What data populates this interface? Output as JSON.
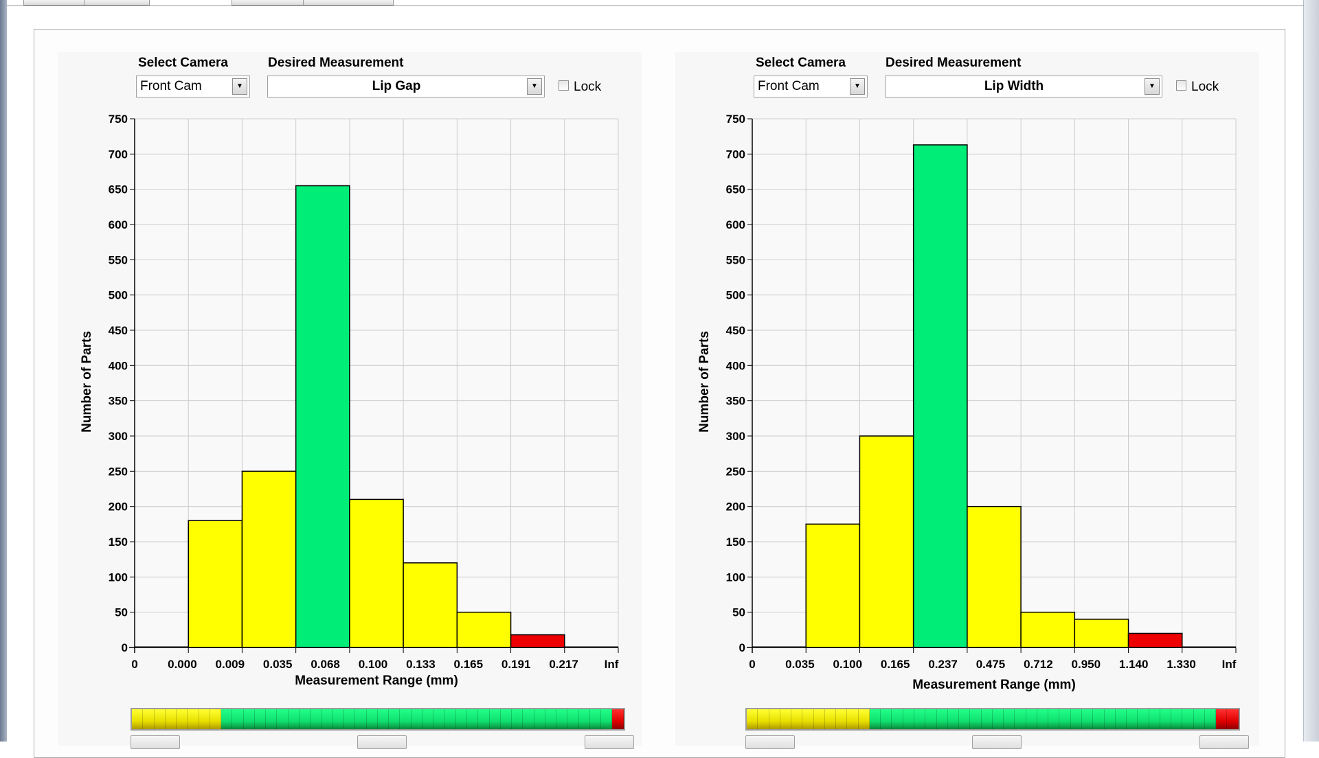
{
  "colors": {
    "yellow": "#ffff00",
    "green": "#00ee77",
    "red": "#ee0000",
    "grid": "#cccccc"
  },
  "charts": [
    {
      "camera_label": "Select Camera",
      "camera_value": "Front Cam",
      "measure_label": "Desired Measurement",
      "measure_value": "Lip Gap",
      "lock_label": "Lock",
      "lock_checked": false,
      "meter": {
        "yellow_segments": 8,
        "green_segments": 35,
        "red_segments": 1
      },
      "chart_data": {
        "type": "bar",
        "title": "",
        "xlabel": "Measurement Range (mm)",
        "ylabel": "Number of Parts",
        "ylim": [
          0,
          750
        ],
        "yticks": [
          0,
          50,
          100,
          150,
          200,
          250,
          300,
          350,
          400,
          450,
          500,
          550,
          600,
          650,
          700,
          750
        ],
        "tick_labels": [
          "0",
          "0.000",
          "0.009",
          "0.035",
          "0.068",
          "0.100",
          "0.133",
          "0.165",
          "0.191",
          "0.217",
          "Inf"
        ],
        "values": [
          0,
          180,
          250,
          655,
          210,
          120,
          50,
          18,
          0
        ],
        "bar_colors": [
          "none",
          "yellow",
          "yellow",
          "green",
          "yellow",
          "yellow",
          "yellow",
          "red",
          "none"
        ],
        "grid": true
      }
    },
    {
      "camera_label": "Select Camera",
      "camera_value": "Front Cam",
      "measure_label": "Desired Measurement",
      "measure_value": "Lip Width",
      "lock_label": "Lock",
      "lock_checked": false,
      "meter": {
        "yellow_segments": 11,
        "green_segments": 31,
        "red_segments": 2
      },
      "chart_data": {
        "type": "bar",
        "title": "",
        "xlabel": "Measurement Range (mm)",
        "ylabel": "Number of Parts",
        "ylim": [
          0,
          750
        ],
        "yticks": [
          0,
          50,
          100,
          150,
          200,
          250,
          300,
          350,
          400,
          450,
          500,
          550,
          600,
          650,
          700,
          750
        ],
        "tick_labels": [
          "0",
          "0.035",
          "0.100",
          "0.165",
          "0.237",
          "0.475",
          "0.712",
          "0.950",
          "1.140",
          "1.330",
          "Inf"
        ],
        "values": [
          0,
          175,
          300,
          713,
          200,
          50,
          40,
          20,
          0
        ],
        "bar_colors": [
          "none",
          "yellow",
          "yellow",
          "green",
          "yellow",
          "yellow",
          "yellow",
          "red",
          "none"
        ],
        "grid": true
      }
    }
  ]
}
